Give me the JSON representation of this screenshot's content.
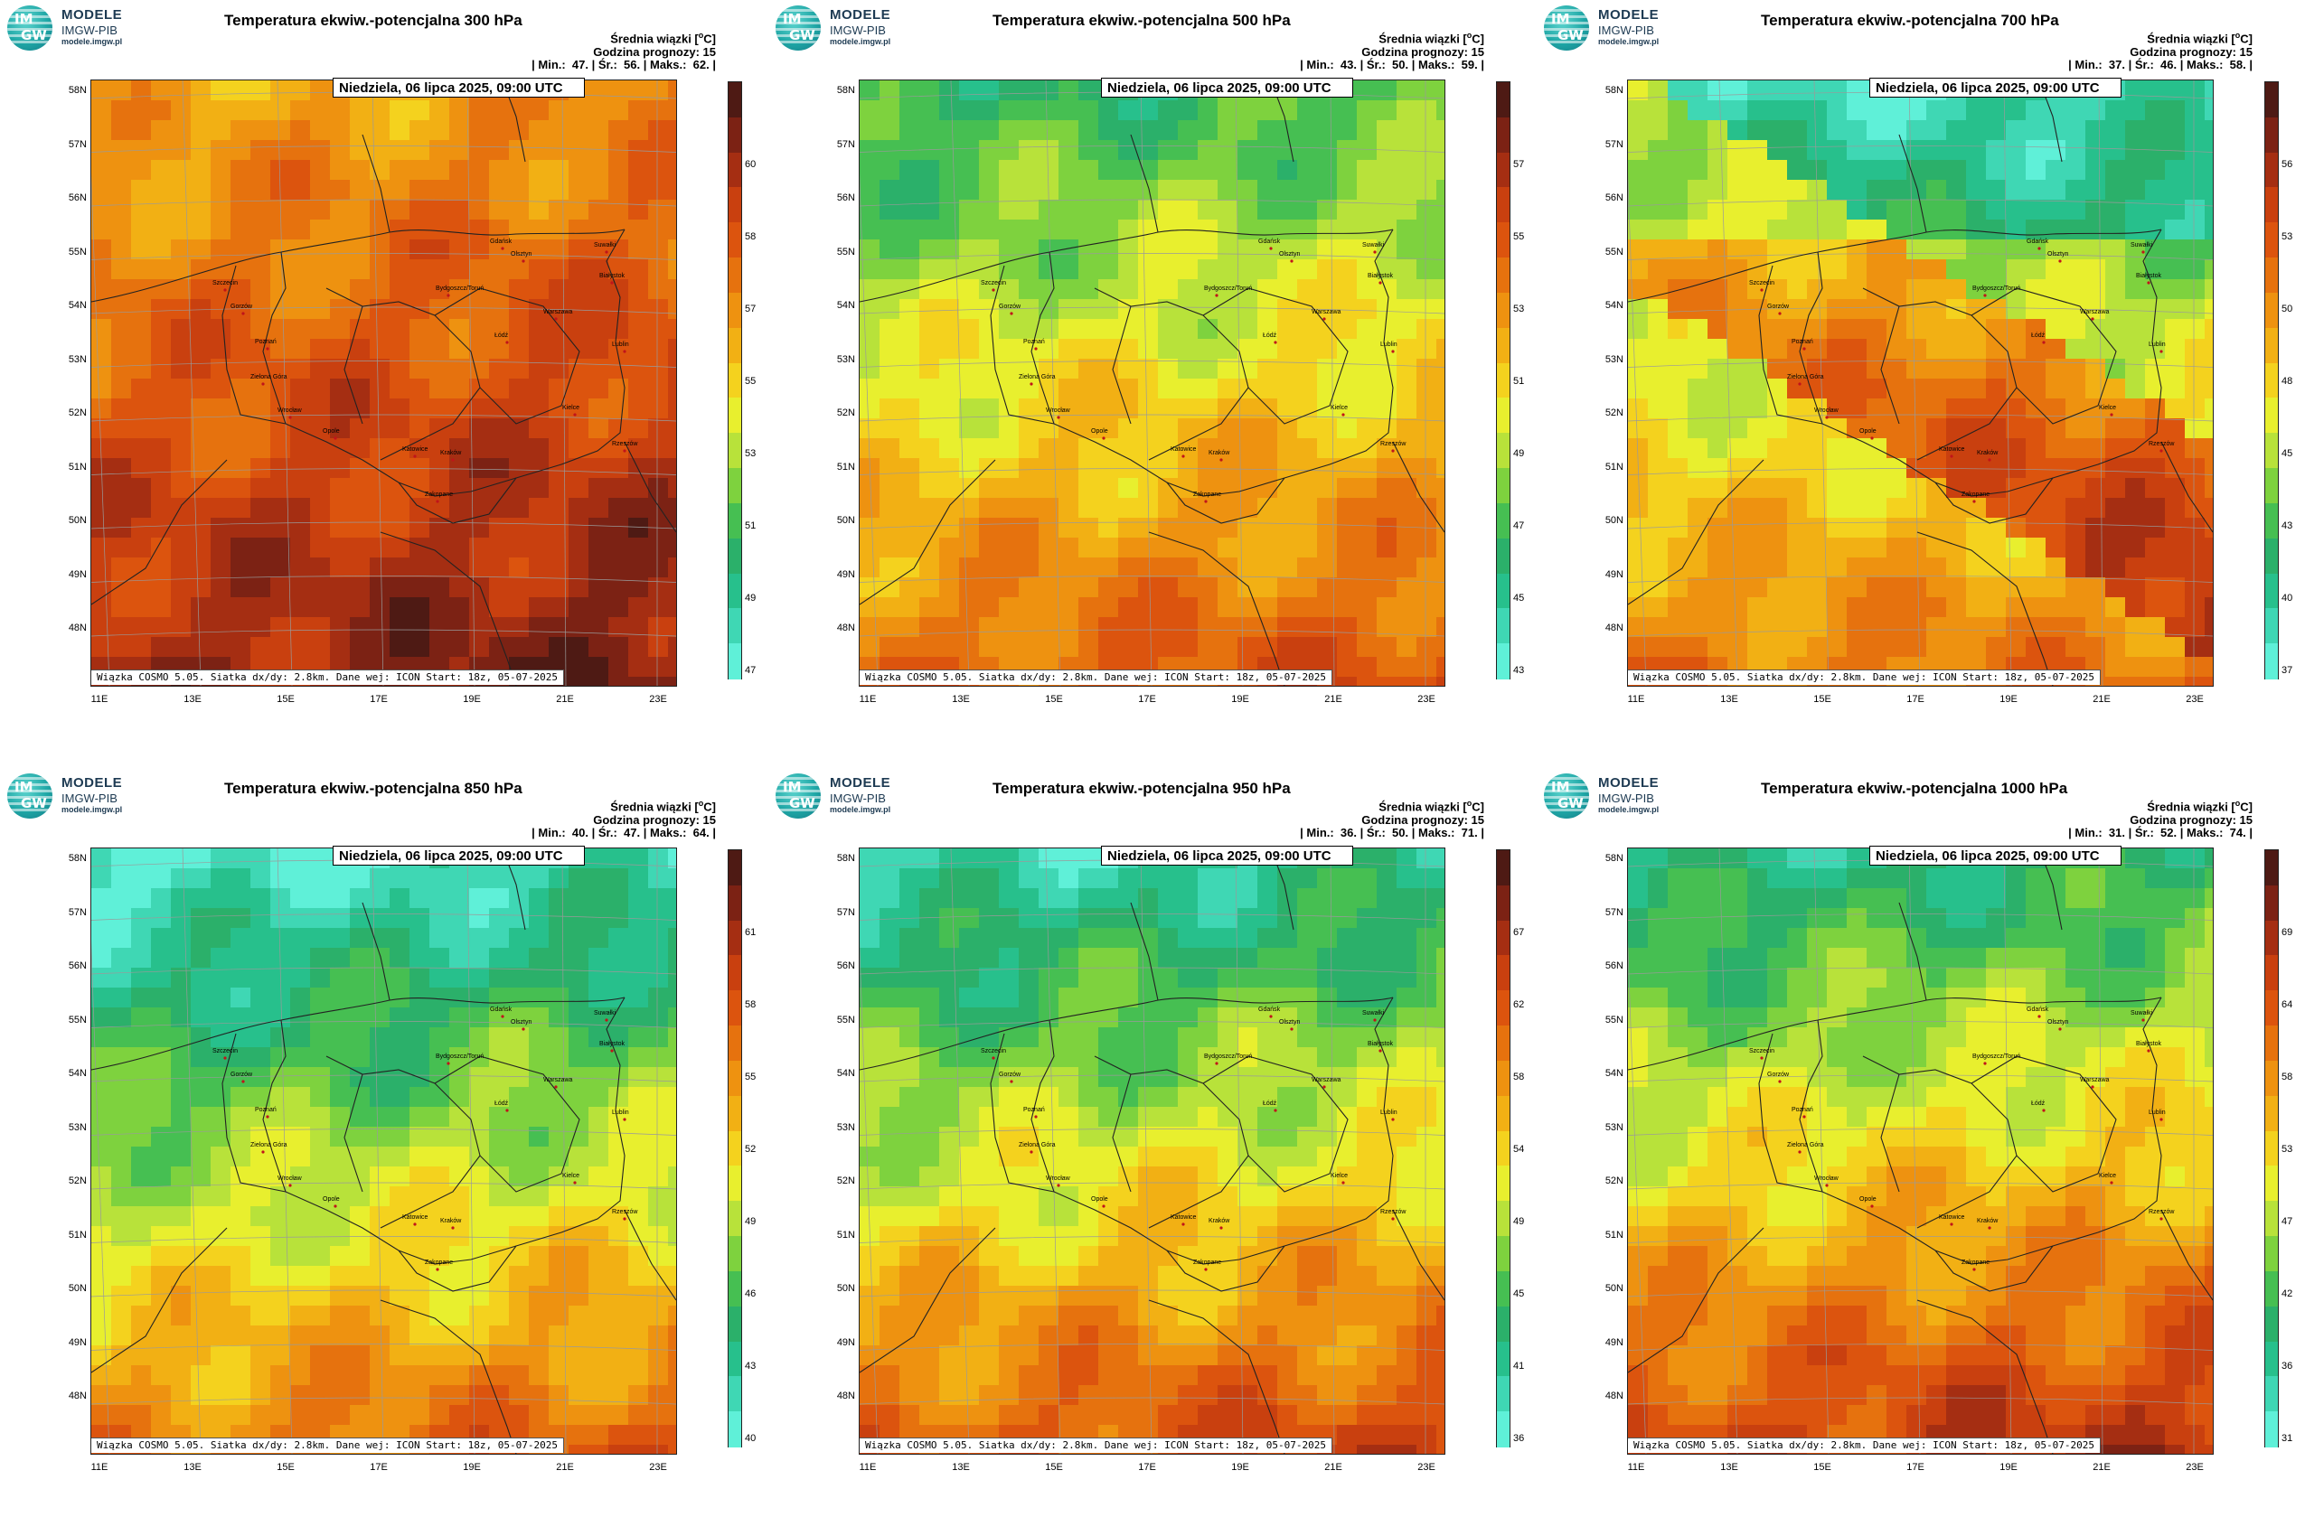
{
  "logo": {
    "brand": "MODELE",
    "org": "IMGW-PIB",
    "url": "modele.imgw.pl",
    "mark_top": "IM",
    "mark_bottom": "GW"
  },
  "common": {
    "avg_label": "Średnia wiązki [",
    "avg_unit_sup": "o",
    "avg_unit_tail": "C]",
    "forecast_hour": "Godzina prognozy: 15",
    "date": "Niedziela, 06 lipca 2025, 09:00 UTC",
    "credit": "Wiązka COSMO 5.05. Siatka dx/dy: 2.8km. Dane wej: ICON Start: 18z, 05-07-2025",
    "lat_labels": [
      "58N",
      "57N",
      "56N",
      "55N",
      "54N",
      "53N",
      "52N",
      "51N",
      "50N",
      "49N",
      "48N"
    ],
    "lon_labels": [
      "11E",
      "13E",
      "15E",
      "17E",
      "19E",
      "21E",
      "23E"
    ],
    "cities": [
      "Gdańsk",
      "Olsztyn",
      "Suwałki",
      "Szczecin",
      "Bydgoszcz/Toruń",
      "Białystok",
      "Gorzów",
      "Poznań",
      "Warszawa",
      "Zielona Góra",
      "Łódź",
      "Lublin",
      "Wrocław",
      "Kielce",
      "Opole",
      "Katowice",
      "Kraków",
      "Rzeszów",
      "Zakopane"
    ]
  },
  "colors": {
    "scale": [
      "#5ff0d8",
      "#3fd7b4",
      "#27c08c",
      "#2bb06a",
      "#46bf52",
      "#7ed23e",
      "#b8e23a",
      "#e8ef2e",
      "#f4d21e",
      "#f2b014",
      "#ee9210",
      "#e6720e",
      "#dc540e",
      "#c9400f",
      "#a52e12",
      "#7c2214",
      "#4e1a14"
    ]
  },
  "panels": [
    {
      "id": "p300",
      "title": "Temperatura ekwiw.-potencjalna 300 hPa",
      "min": "47.",
      "avg": "56.",
      "max": "62.",
      "cbar_labels": [
        "60",
        "58",
        "57",
        "55",
        "53",
        "51",
        "49",
        "47"
      ],
      "bias": 9,
      "spread": 2.2,
      "gradient": "s"
    },
    {
      "id": "p500",
      "title": "Temperatura ekwiw.-potencjalna 500 hPa",
      "min": "43.",
      "avg": "50.",
      "max": "59.",
      "cbar_labels": [
        "57",
        "55",
        "53",
        "51",
        "49",
        "47",
        "45",
        "43"
      ],
      "bias": 3,
      "spread": 3.5,
      "gradient": "s"
    },
    {
      "id": "p700",
      "title": "Temperatura ekwiw.-potencjalna 700 hPa",
      "min": "37.",
      "avg": "46.",
      "max": "58.",
      "cbar_labels": [
        "56",
        "53",
        "50",
        "48",
        "45",
        "43",
        "40",
        "37"
      ],
      "bias": 3,
      "spread": 4,
      "gradient": "band"
    },
    {
      "id": "p850",
      "title": "Temperatura ekwiw.-potencjalna 850 hPa",
      "min": "40.",
      "avg": "47.",
      "max": "64.",
      "cbar_labels": [
        "61",
        "58",
        "55",
        "52",
        "49",
        "46",
        "43",
        "40"
      ],
      "bias": 0,
      "spread": 4.5,
      "gradient": "s"
    },
    {
      "id": "p950",
      "title": "Temperatura ekwiw.-potencjalna 950 hPa",
      "min": "36.",
      "avg": "50.",
      "max": "71.",
      "cbar_labels": [
        "67",
        "62",
        "58",
        "54",
        "49",
        "45",
        "41",
        "36"
      ],
      "bias": 1,
      "spread": 4.5,
      "gradient": "s"
    },
    {
      "id": "p1000",
      "title": "Temperatura ekwiw.-potencjalna 1000 hPa",
      "min": "31.",
      "avg": "52.",
      "max": "74.",
      "cbar_labels": [
        "69",
        "64",
        "58",
        "53",
        "47",
        "42",
        "36",
        "31"
      ],
      "bias": 2,
      "spread": 4.5,
      "gradient": "s"
    }
  ]
}
